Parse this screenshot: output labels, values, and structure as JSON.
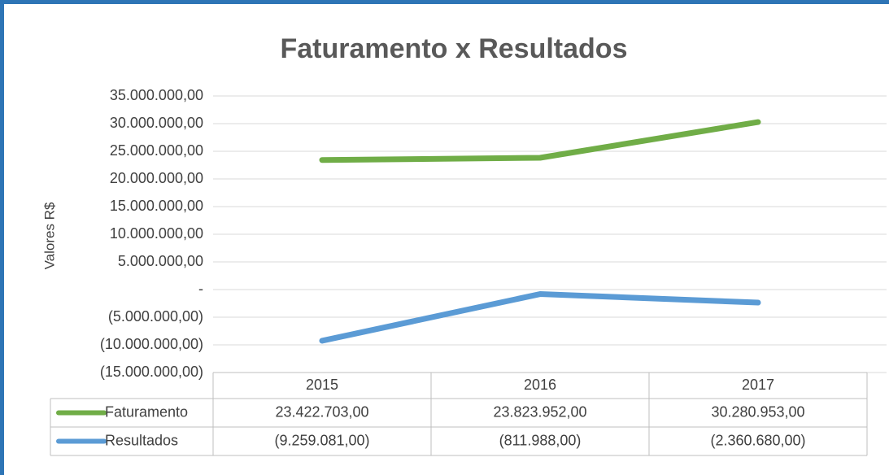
{
  "chart_data": {
    "type": "line",
    "title": "Faturamento x Resultados",
    "ylabel": "Valores R$",
    "categories": [
      "2015",
      "2016",
      "2017"
    ],
    "series": [
      {
        "name": "Faturamento",
        "color": "#70ad47",
        "values": [
          23422703,
          23823952,
          30280953
        ],
        "value_labels": [
          "23.422.703,00",
          "23.823.952,00",
          "30.280.953,00"
        ]
      },
      {
        "name": "Resultados",
        "color": "#5b9bd5",
        "values": [
          -9259081,
          -811988,
          -2360680
        ],
        "value_labels": [
          "(9.259.081,00)",
          "(811.988,00)",
          "(2.360.680,00)"
        ]
      }
    ],
    "ylim": [
      -15000000,
      35000000
    ],
    "yticks": [
      {
        "value": -15000000,
        "label": "(15.000.000,00)"
      },
      {
        "value": -10000000,
        "label": "(10.000.000,00)"
      },
      {
        "value": -5000000,
        "label": "(5.000.000,00)"
      },
      {
        "value": 0,
        "label": "-"
      },
      {
        "value": 5000000,
        "label": "5.000.000,00"
      },
      {
        "value": 10000000,
        "label": "10.000.000,00"
      },
      {
        "value": 15000000,
        "label": "15.000.000,00"
      },
      {
        "value": 20000000,
        "label": "20.000.000,00"
      },
      {
        "value": 25000000,
        "label": "25.000.000,00"
      },
      {
        "value": 30000000,
        "label": "30.000.000,00"
      },
      {
        "value": 35000000,
        "label": "35.000.000,00"
      }
    ],
    "grid": true,
    "data_table": true
  }
}
